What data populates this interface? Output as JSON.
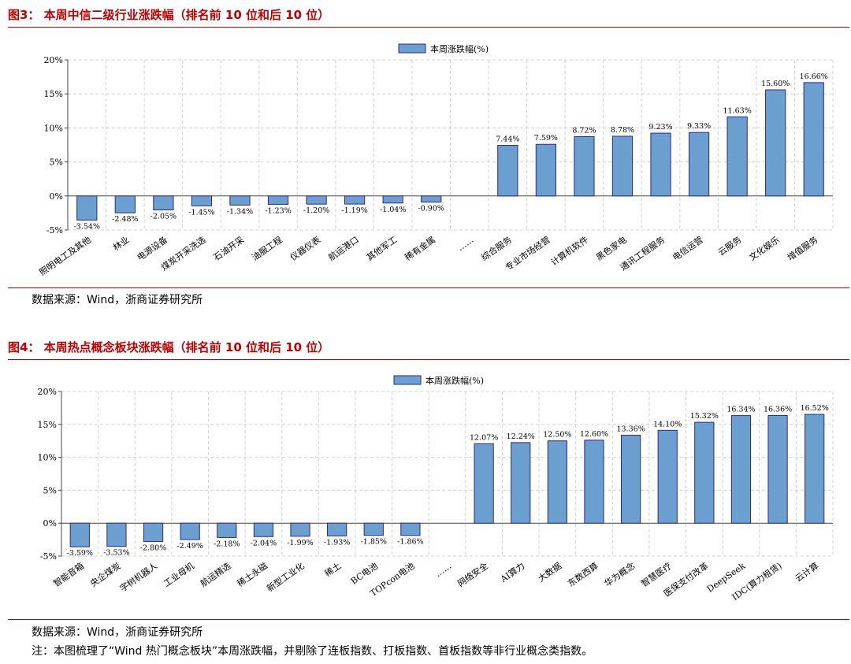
{
  "figures": [
    {
      "caption": "图3：  本周中信二级行业涨跌幅（排名前 10 位和后 10 位）",
      "source": "数据来源：Wind，浙商证券研究所",
      "note": ""
    },
    {
      "caption": "图4：  本周热点概念板块涨跌幅（排名前 10 位和后 10 位）",
      "source": "数据来源：Wind，浙商证券研究所",
      "note": "注：本图梳理了“Wind 热门概念板块”本周涨跌幅，并剔除了连板指数、打板指数、首板指数等非行业概念类指数。"
    }
  ],
  "colors": {
    "bar_fill": "#6a9fcf",
    "bar_stroke": "#2a2a8a",
    "caption": "#c00000",
    "grid": "#d0d0d0"
  },
  "chart_data": [
    {
      "type": "bar",
      "legend": "本周涨跌幅(%)",
      "legend_position": "top-center",
      "grid": true,
      "ylim": [
        -5,
        20
      ],
      "yticks": [
        "20%",
        "15%",
        "10%",
        "5%",
        "0%",
        "-5%"
      ],
      "categories": [
        "照明电工及其他",
        "林业",
        "电源设备",
        "煤炭开采洗选",
        "石油开采",
        "油服工程",
        "仪器仪表",
        "航运港口",
        "其他军工",
        "稀有金属",
        "……",
        "综合服务",
        "专业市场经营",
        "计算机软件",
        "黑色家电",
        "通讯工程服务",
        "电信运营",
        "云服务",
        "文化娱乐",
        "增值服务"
      ],
      "values": [
        -3.54,
        -2.48,
        -2.05,
        -1.45,
        -1.34,
        -1.23,
        -1.2,
        -1.19,
        -1.04,
        -0.9,
        null,
        7.44,
        7.59,
        8.72,
        8.78,
        9.23,
        9.33,
        11.63,
        15.6,
        16.66
      ],
      "labels": [
        "-3.54%",
        "-2.48%",
        "-2.05%",
        "-1.45%",
        "-1.34%",
        "-1.23%",
        "-1.20%",
        "-1.19%",
        "-1.04%",
        "-0.90%",
        "",
        "7.44%",
        "7.59%",
        "8.72%",
        "8.78%",
        "9.23%",
        "9.33%",
        "11.63%",
        "15.60%",
        "16.66%"
      ]
    },
    {
      "type": "bar",
      "legend": "本周涨跌幅(%)",
      "legend_position": "top-center",
      "grid": true,
      "ylim": [
        -5,
        20
      ],
      "yticks": [
        "20%",
        "15%",
        "10%",
        "5%",
        "0%",
        "-5%"
      ],
      "categories": [
        "智能音箱",
        "央企煤炭",
        "字树机器人",
        "工业母机",
        "航运精选",
        "稀土永磁",
        "新型工业化",
        "稀土",
        "BC电池",
        "TOPcon电池",
        "……",
        "网络安全",
        "AI算力",
        "大数据",
        "东数西算",
        "华为概念",
        "智慧医疗",
        "医保支付改革",
        "DeepSeek",
        "IDC(算力租赁)",
        "云计算"
      ],
      "values": [
        -3.59,
        -3.53,
        -2.8,
        -2.49,
        -2.18,
        -2.04,
        -1.99,
        -1.93,
        -1.85,
        -1.86,
        null,
        12.07,
        12.24,
        12.5,
        12.6,
        13.36,
        14.1,
        15.32,
        16.34,
        16.36,
        16.52
      ],
      "labels": [
        "-3.59%",
        "-3.53%",
        "-2.80%",
        "-2.49%",
        "-2.18%",
        "-2.04%",
        "-1.99%",
        "-1.93%",
        "-1.85%",
        "-1.86%",
        "",
        "12.07%",
        "12.24%",
        "12.50%",
        "12.60%",
        "13.36%",
        "14.10%",
        "15.32%",
        "16.34%",
        "16.36%",
        "16.52%"
      ]
    }
  ]
}
